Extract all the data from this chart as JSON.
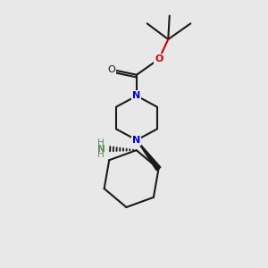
{
  "bg_color": "#e8e8e8",
  "bond_color": "#1a1a1a",
  "N_color": "#0000dd",
  "O_color": "#cc0000",
  "NH2_color": "#5a8a5a",
  "line_width": 1.5,
  "fig_size": [
    3.0,
    3.0
  ],
  "dpi": 100,
  "xlim": [
    0,
    10
  ],
  "ylim": [
    0,
    10
  ]
}
